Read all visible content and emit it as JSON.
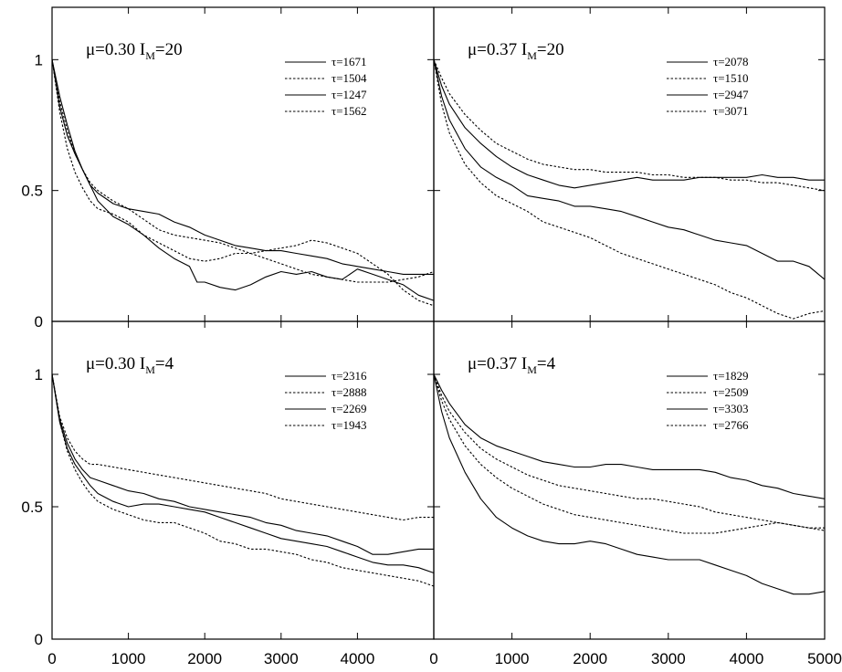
{
  "chart_data": [
    {
      "type": "line",
      "title": "μ=0.30 I_M=20",
      "title_parts": {
        "mu": "μ=0.30 I",
        "sub": "M",
        "rest": "=20"
      },
      "xlim": [
        0,
        5000
      ],
      "ylim": [
        0,
        1.2
      ],
      "legend_position": "top-right",
      "series": [
        {
          "name": "τ=1671",
          "style": "solid",
          "x": [
            0,
            100,
            200,
            300,
            400,
            500,
            600,
            800,
            1000,
            1200,
            1400,
            1600,
            1800,
            1900,
            2000,
            2200,
            2400,
            2600,
            2800,
            3000,
            3200,
            3400,
            3600,
            3800,
            4000,
            4200,
            4400,
            4600,
            4800,
            5000
          ],
          "y": [
            1.0,
            0.82,
            0.71,
            0.64,
            0.58,
            0.52,
            0.46,
            0.4,
            0.37,
            0.33,
            0.28,
            0.24,
            0.21,
            0.15,
            0.15,
            0.13,
            0.12,
            0.14,
            0.17,
            0.19,
            0.18,
            0.19,
            0.17,
            0.16,
            0.2,
            0.18,
            0.16,
            0.14,
            0.1,
            0.08
          ]
        },
        {
          "name": "τ=1504",
          "style": "dashed",
          "x": [
            0,
            100,
            200,
            300,
            400,
            500,
            600,
            800,
            1000,
            1200,
            1400,
            1600,
            1800,
            2000,
            2200,
            2400,
            2600,
            2800,
            3000,
            3200,
            3400,
            3600,
            3800,
            4000,
            4200,
            4400,
            4600,
            4800,
            5000
          ],
          "y": [
            1.0,
            0.8,
            0.66,
            0.57,
            0.51,
            0.46,
            0.43,
            0.41,
            0.38,
            0.33,
            0.3,
            0.27,
            0.24,
            0.23,
            0.24,
            0.26,
            0.26,
            0.27,
            0.28,
            0.29,
            0.31,
            0.3,
            0.28,
            0.26,
            0.22,
            0.18,
            0.12,
            0.08,
            0.06
          ]
        },
        {
          "name": "τ=1247",
          "style": "solid",
          "x": [
            0,
            100,
            200,
            300,
            400,
            500,
            600,
            800,
            1000,
            1200,
            1400,
            1600,
            1800,
            2000,
            2200,
            2400,
            2600,
            2800,
            3000,
            3200,
            3400,
            3600,
            3800,
            4000,
            4200,
            4400,
            4600,
            4800,
            5000
          ],
          "y": [
            1.0,
            0.86,
            0.75,
            0.65,
            0.58,
            0.52,
            0.49,
            0.45,
            0.43,
            0.42,
            0.41,
            0.38,
            0.36,
            0.33,
            0.31,
            0.29,
            0.28,
            0.27,
            0.27,
            0.26,
            0.25,
            0.24,
            0.22,
            0.21,
            0.2,
            0.19,
            0.18,
            0.18,
            0.18
          ]
        },
        {
          "name": "τ=1562",
          "style": "dashed",
          "x": [
            0,
            100,
            200,
            300,
            400,
            500,
            600,
            800,
            1000,
            1200,
            1400,
            1600,
            1800,
            2000,
            2200,
            2400,
            2600,
            2800,
            3000,
            3200,
            3400,
            3600,
            3800,
            4000,
            4200,
            4400,
            4600,
            4800,
            5000
          ],
          "y": [
            1.0,
            0.84,
            0.73,
            0.64,
            0.58,
            0.53,
            0.5,
            0.46,
            0.43,
            0.39,
            0.35,
            0.33,
            0.32,
            0.31,
            0.3,
            0.28,
            0.26,
            0.24,
            0.22,
            0.2,
            0.18,
            0.17,
            0.16,
            0.15,
            0.15,
            0.15,
            0.16,
            0.17,
            0.19
          ]
        }
      ]
    },
    {
      "type": "line",
      "title": "μ=0.37 I_M=20",
      "title_parts": {
        "mu": "μ=0.37 I",
        "sub": "M",
        "rest": "=20"
      },
      "xlim": [
        0,
        5000
      ],
      "ylim": [
        0,
        1.2
      ],
      "legend_position": "top-right",
      "series": [
        {
          "name": "τ=2078",
          "style": "solid",
          "x": [
            0,
            100,
            200,
            400,
            600,
            800,
            1000,
            1200,
            1400,
            1600,
            1800,
            2000,
            2200,
            2400,
            2600,
            2800,
            3000,
            3200,
            3400,
            3600,
            3800,
            4000,
            4200,
            4400,
            4600,
            4800,
            5000
          ],
          "y": [
            1.0,
            0.9,
            0.83,
            0.74,
            0.68,
            0.63,
            0.59,
            0.56,
            0.54,
            0.52,
            0.51,
            0.52,
            0.53,
            0.54,
            0.55,
            0.54,
            0.54,
            0.54,
            0.55,
            0.55,
            0.55,
            0.55,
            0.56,
            0.55,
            0.55,
            0.54,
            0.54
          ]
        },
        {
          "name": "τ=1510",
          "style": "dashed",
          "x": [
            0,
            100,
            200,
            400,
            600,
            800,
            1000,
            1200,
            1400,
            1600,
            1800,
            2000,
            2200,
            2400,
            2600,
            2800,
            3000,
            3200,
            3400,
            3600,
            3800,
            4000,
            4200,
            4400,
            4600,
            4800,
            5000
          ],
          "y": [
            1.0,
            0.93,
            0.87,
            0.79,
            0.73,
            0.68,
            0.65,
            0.62,
            0.6,
            0.59,
            0.58,
            0.58,
            0.57,
            0.57,
            0.57,
            0.56,
            0.56,
            0.55,
            0.55,
            0.55,
            0.54,
            0.54,
            0.53,
            0.53,
            0.52,
            0.51,
            0.5
          ]
        },
        {
          "name": "τ=2947",
          "style": "solid",
          "x": [
            0,
            100,
            200,
            400,
            600,
            800,
            1000,
            1200,
            1400,
            1600,
            1800,
            2000,
            2200,
            2400,
            2600,
            2800,
            3000,
            3200,
            3400,
            3600,
            3800,
            4000,
            4200,
            4400,
            4600,
            4800,
            5000
          ],
          "y": [
            1.0,
            0.86,
            0.77,
            0.66,
            0.59,
            0.55,
            0.52,
            0.48,
            0.47,
            0.46,
            0.44,
            0.44,
            0.43,
            0.42,
            0.4,
            0.38,
            0.36,
            0.35,
            0.33,
            0.31,
            0.3,
            0.29,
            0.26,
            0.23,
            0.23,
            0.21,
            0.16
          ]
        },
        {
          "name": "τ=3071",
          "style": "dashed",
          "x": [
            0,
            100,
            200,
            400,
            600,
            800,
            1000,
            1200,
            1400,
            1600,
            1800,
            2000,
            2200,
            2400,
            2600,
            2800,
            3000,
            3200,
            3400,
            3600,
            3800,
            4000,
            4200,
            4400,
            4600,
            4800,
            5000
          ],
          "y": [
            1.0,
            0.83,
            0.72,
            0.6,
            0.53,
            0.48,
            0.45,
            0.42,
            0.38,
            0.36,
            0.34,
            0.32,
            0.29,
            0.26,
            0.24,
            0.22,
            0.2,
            0.18,
            0.16,
            0.14,
            0.11,
            0.09,
            0.06,
            0.03,
            0.01,
            0.03,
            0.04
          ]
        }
      ]
    },
    {
      "type": "line",
      "title": "μ=0.30 I_M=4",
      "title_parts": {
        "mu": "μ=0.30 I",
        "sub": "M",
        "rest": "=4"
      },
      "xlim": [
        0,
        5000
      ],
      "ylim": [
        0,
        1.2
      ],
      "legend_position": "top-right",
      "series": [
        {
          "name": "τ=2316",
          "style": "solid",
          "x": [
            0,
            100,
            200,
            300,
            400,
            500,
            600,
            800,
            1000,
            1200,
            1400,
            1600,
            1800,
            2000,
            2200,
            2400,
            2600,
            2800,
            3000,
            3200,
            3400,
            3600,
            3800,
            4000,
            4200,
            4400,
            4600,
            4800,
            5000
          ],
          "y": [
            1.0,
            0.83,
            0.74,
            0.68,
            0.64,
            0.61,
            0.6,
            0.58,
            0.56,
            0.55,
            0.53,
            0.52,
            0.5,
            0.49,
            0.48,
            0.47,
            0.46,
            0.44,
            0.43,
            0.41,
            0.4,
            0.39,
            0.37,
            0.35,
            0.32,
            0.32,
            0.33,
            0.34,
            0.34
          ]
        },
        {
          "name": "τ=2888",
          "style": "dashed",
          "x": [
            0,
            100,
            200,
            300,
            400,
            500,
            600,
            800,
            1000,
            1200,
            1400,
            1600,
            1800,
            2000,
            2200,
            2400,
            2600,
            2800,
            3000,
            3200,
            3400,
            3600,
            3800,
            4000,
            4200,
            4400,
            4600,
            4800,
            5000
          ],
          "y": [
            1.0,
            0.84,
            0.76,
            0.71,
            0.68,
            0.66,
            0.66,
            0.65,
            0.64,
            0.63,
            0.62,
            0.61,
            0.6,
            0.59,
            0.58,
            0.57,
            0.56,
            0.55,
            0.53,
            0.52,
            0.51,
            0.5,
            0.49,
            0.48,
            0.47,
            0.46,
            0.45,
            0.46,
            0.46
          ]
        },
        {
          "name": "τ=2269",
          "style": "solid",
          "x": [
            0,
            100,
            200,
            300,
            400,
            500,
            600,
            800,
            1000,
            1200,
            1400,
            1600,
            1800,
            2000,
            2200,
            2400,
            2600,
            2800,
            3000,
            3200,
            3400,
            3600,
            3800,
            4000,
            4200,
            4400,
            4600,
            4800,
            5000
          ],
          "y": [
            1.0,
            0.82,
            0.72,
            0.66,
            0.62,
            0.58,
            0.55,
            0.52,
            0.5,
            0.51,
            0.51,
            0.5,
            0.49,
            0.48,
            0.46,
            0.44,
            0.42,
            0.4,
            0.38,
            0.37,
            0.36,
            0.35,
            0.33,
            0.31,
            0.29,
            0.28,
            0.28,
            0.27,
            0.25
          ]
        },
        {
          "name": "τ=1943",
          "style": "dashed",
          "x": [
            0,
            100,
            200,
            300,
            400,
            500,
            600,
            800,
            1000,
            1200,
            1400,
            1600,
            1800,
            2000,
            2200,
            2400,
            2600,
            2800,
            3000,
            3200,
            3400,
            3600,
            3800,
            4000,
            4200,
            4400,
            4600,
            4800,
            5000
          ],
          "y": [
            1.0,
            0.82,
            0.71,
            0.64,
            0.59,
            0.55,
            0.52,
            0.49,
            0.47,
            0.45,
            0.44,
            0.44,
            0.42,
            0.4,
            0.37,
            0.36,
            0.34,
            0.34,
            0.33,
            0.32,
            0.3,
            0.29,
            0.27,
            0.26,
            0.25,
            0.24,
            0.23,
            0.22,
            0.2
          ]
        }
      ]
    },
    {
      "type": "line",
      "title": "μ=0.37 I_M=4",
      "title_parts": {
        "mu": "μ=0.37 I",
        "sub": "M",
        "rest": "=4"
      },
      "xlim": [
        0,
        5000
      ],
      "ylim": [
        0,
        1.2
      ],
      "legend_position": "top-right",
      "series": [
        {
          "name": "τ=1829",
          "style": "solid",
          "x": [
            0,
            100,
            200,
            400,
            600,
            800,
            1000,
            1200,
            1400,
            1600,
            1800,
            2000,
            2200,
            2400,
            2600,
            2800,
            3000,
            3200,
            3400,
            3600,
            3800,
            4000,
            4200,
            4400,
            4600,
            4800,
            5000
          ],
          "y": [
            1.0,
            0.94,
            0.89,
            0.81,
            0.76,
            0.73,
            0.71,
            0.69,
            0.67,
            0.66,
            0.65,
            0.65,
            0.66,
            0.66,
            0.65,
            0.64,
            0.64,
            0.64,
            0.64,
            0.63,
            0.61,
            0.6,
            0.58,
            0.57,
            0.55,
            0.54,
            0.53
          ]
        },
        {
          "name": "τ=2509",
          "style": "dashed",
          "x": [
            0,
            100,
            200,
            400,
            600,
            800,
            1000,
            1200,
            1400,
            1600,
            1800,
            2000,
            2200,
            2400,
            2600,
            2800,
            3000,
            3200,
            3400,
            3600,
            3800,
            4000,
            4200,
            4400,
            4600,
            4800,
            5000
          ],
          "y": [
            1.0,
            0.92,
            0.86,
            0.78,
            0.72,
            0.68,
            0.65,
            0.62,
            0.6,
            0.58,
            0.57,
            0.56,
            0.55,
            0.54,
            0.53,
            0.53,
            0.52,
            0.51,
            0.5,
            0.48,
            0.47,
            0.46,
            0.45,
            0.44,
            0.43,
            0.42,
            0.42
          ]
        },
        {
          "name": "τ=3303",
          "style": "solid",
          "x": [
            0,
            100,
            200,
            400,
            600,
            800,
            1000,
            1200,
            1400,
            1600,
            1800,
            2000,
            2200,
            2400,
            2600,
            2800,
            3000,
            3200,
            3400,
            3600,
            3800,
            4000,
            4200,
            4400,
            4600,
            4800,
            5000
          ],
          "y": [
            1.0,
            0.86,
            0.76,
            0.63,
            0.53,
            0.46,
            0.42,
            0.39,
            0.37,
            0.36,
            0.36,
            0.37,
            0.36,
            0.34,
            0.32,
            0.31,
            0.3,
            0.3,
            0.3,
            0.28,
            0.26,
            0.24,
            0.21,
            0.19,
            0.17,
            0.17,
            0.18
          ]
        },
        {
          "name": "τ=2766",
          "style": "dashed",
          "x": [
            0,
            100,
            200,
            400,
            600,
            800,
            1000,
            1200,
            1400,
            1600,
            1800,
            2000,
            2200,
            2400,
            2600,
            2800,
            3000,
            3200,
            3400,
            3600,
            3800,
            4000,
            4200,
            4400,
            4600,
            4800,
            5000
          ],
          "y": [
            1.0,
            0.9,
            0.83,
            0.73,
            0.66,
            0.61,
            0.57,
            0.54,
            0.51,
            0.49,
            0.47,
            0.46,
            0.45,
            0.44,
            0.43,
            0.42,
            0.41,
            0.4,
            0.4,
            0.4,
            0.41,
            0.42,
            0.43,
            0.44,
            0.43,
            0.42,
            0.41
          ]
        }
      ]
    }
  ],
  "axes": {
    "y_ticks": [
      "0",
      "0.5",
      "1"
    ],
    "x_ticks": [
      "0",
      "1000",
      "2000",
      "3000",
      "4000",
      "0",
      "1000",
      "2000",
      "3000",
      "4000",
      "5000"
    ]
  }
}
